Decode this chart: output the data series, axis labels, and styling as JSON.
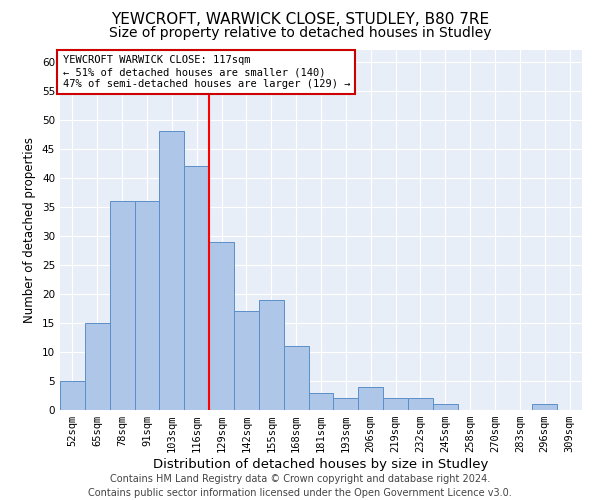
{
  "title": "YEWCROFT, WARWICK CLOSE, STUDLEY, B80 7RE",
  "subtitle": "Size of property relative to detached houses in Studley",
  "xlabel": "Distribution of detached houses by size in Studley",
  "ylabel": "Number of detached properties",
  "categories": [
    "52sqm",
    "65sqm",
    "78sqm",
    "91sqm",
    "103sqm",
    "116sqm",
    "129sqm",
    "142sqm",
    "155sqm",
    "168sqm",
    "181sqm",
    "193sqm",
    "206sqm",
    "219sqm",
    "232sqm",
    "245sqm",
    "258sqm",
    "270sqm",
    "283sqm",
    "296sqm",
    "309sqm"
  ],
  "values": [
    5,
    15,
    36,
    36,
    48,
    42,
    29,
    17,
    19,
    11,
    3,
    2,
    4,
    2,
    2,
    1,
    0,
    0,
    0,
    1,
    0
  ],
  "bar_color": "#aec6e8",
  "bar_edge_color": "#5b8fc9",
  "red_line_x": 5.5,
  "annotation_line1": "YEWCROFT WARWICK CLOSE: 117sqm",
  "annotation_line2": "← 51% of detached houses are smaller (140)",
  "annotation_line3": "47% of semi-detached houses are larger (129) →",
  "annotation_box_color": "#ffffff",
  "annotation_box_edge_color": "#cc0000",
  "ylim": [
    0,
    62
  ],
  "yticks": [
    0,
    5,
    10,
    15,
    20,
    25,
    30,
    35,
    40,
    45,
    50,
    55,
    60
  ],
  "background_color": "#e8eef7",
  "footer_line1": "Contains HM Land Registry data © Crown copyright and database right 2024.",
  "footer_line2": "Contains public sector information licensed under the Open Government Licence v3.0.",
  "title_fontsize": 11,
  "subtitle_fontsize": 10,
  "xlabel_fontsize": 9.5,
  "ylabel_fontsize": 8.5,
  "tick_fontsize": 7.5,
  "footer_fontsize": 7
}
